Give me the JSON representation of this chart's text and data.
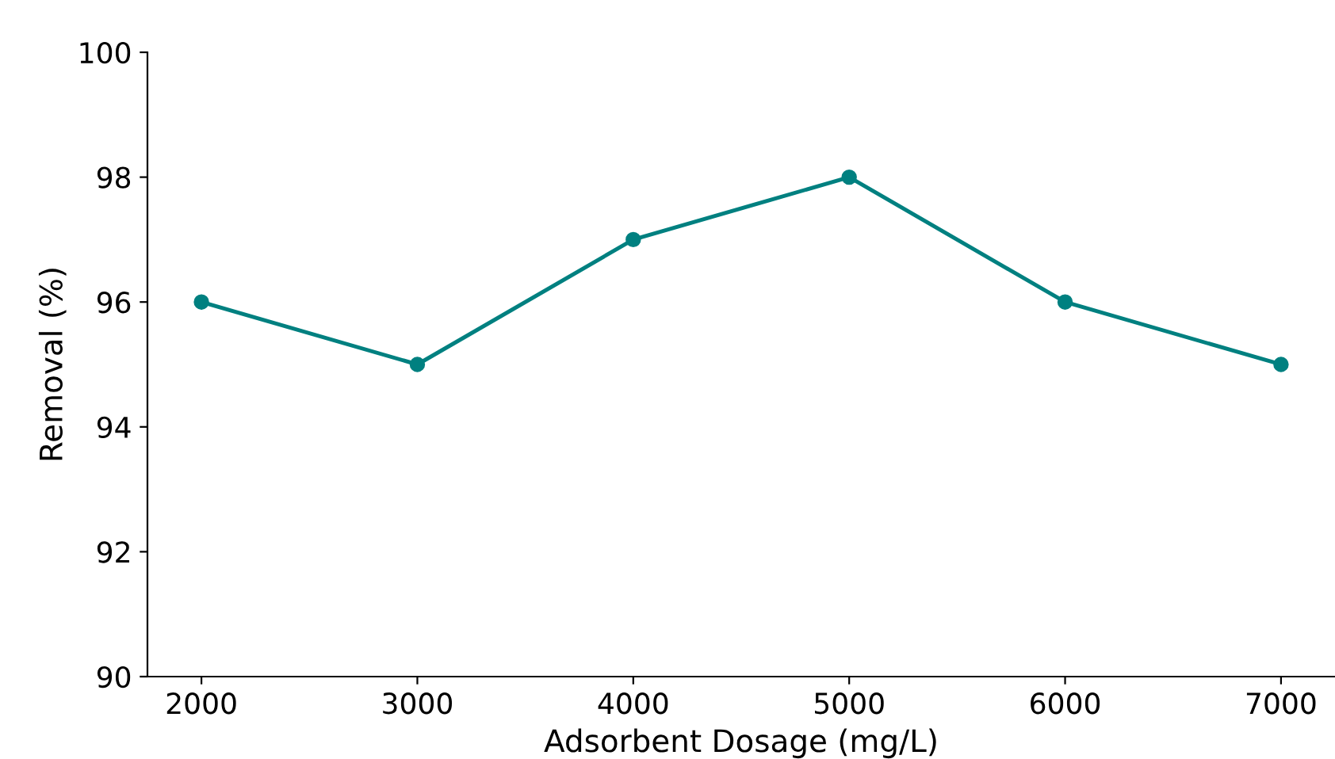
{
  "chart_data": {
    "type": "line",
    "xlabel": "Adsorbent Dosage (mg/L)",
    "ylabel": "Removal (%)",
    "x": [
      2000,
      3000,
      4000,
      5000,
      6000,
      7000
    ],
    "series": [
      {
        "color": "#008080",
        "values": [
          96,
          95,
          97,
          98,
          96,
          95
        ]
      }
    ],
    "marker": "circle",
    "line_style": "solid",
    "xlim": [
      1750,
      7250
    ],
    "xticks": [
      2000,
      3000,
      4000,
      5000,
      6000,
      7000
    ],
    "ylim": [
      90,
      100
    ],
    "yticks": [
      90,
      92,
      94,
      96,
      98,
      100
    ],
    "grid": false,
    "legend": false
  }
}
